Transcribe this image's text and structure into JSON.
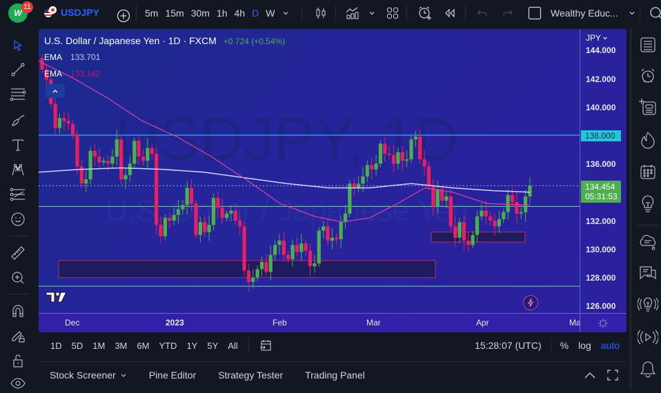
{
  "topbar": {
    "notification_count": "11",
    "logo_text": "W",
    "symbol": "USDJPY",
    "intervals": [
      "5m",
      "15m",
      "30m",
      "1h",
      "4h",
      "D",
      "W"
    ],
    "active_interval": "D",
    "layout_name": "Wealthy Educ..."
  },
  "chart": {
    "title": "U.S. Dollar / Japanese Yen · 1D · FXCM",
    "change": "+0.724 (+0.54%)",
    "watermark_main": "USDJPY, 1D",
    "watermark_sub": "U.S. Dollar / Japanese Yen",
    "ema1": {
      "label": "EMA",
      "value": "133.701",
      "color": "#d1d4dc"
    },
    "ema2": {
      "label": "EMA",
      "value": "133.142",
      "color": "#c2185b"
    },
    "currency": "JPY",
    "price_labels": [
      "144.000",
      "142.000",
      "140.000",
      "136.000",
      "132.000",
      "130.000",
      "128.000",
      "126.000"
    ],
    "level_tag": "138.000",
    "last_price": "134.454",
    "countdown": "05:31:53",
    "time_labels": [
      "Dec",
      "2023",
      "Feb",
      "Mar",
      "Apr",
      "Ma"
    ],
    "colors": {
      "up": "#4caf50",
      "down": "#e91e63",
      "level_line": "#29b6f6",
      "support_line": "#80cbc4",
      "ema_white": "#d1d4f0",
      "ema_pink": "#e040a0"
    }
  },
  "bottombar": {
    "ranges": [
      "1D",
      "5D",
      "1M",
      "3M",
      "6M",
      "YTD",
      "1Y",
      "5Y",
      "All"
    ],
    "clock": "15:28:07 (UTC)",
    "percent": "%",
    "log": "log",
    "auto": "auto"
  },
  "panelbar": {
    "tabs": [
      "Stock Screener",
      "Pine Editor",
      "Strategy Tester",
      "Trading Panel"
    ]
  }
}
